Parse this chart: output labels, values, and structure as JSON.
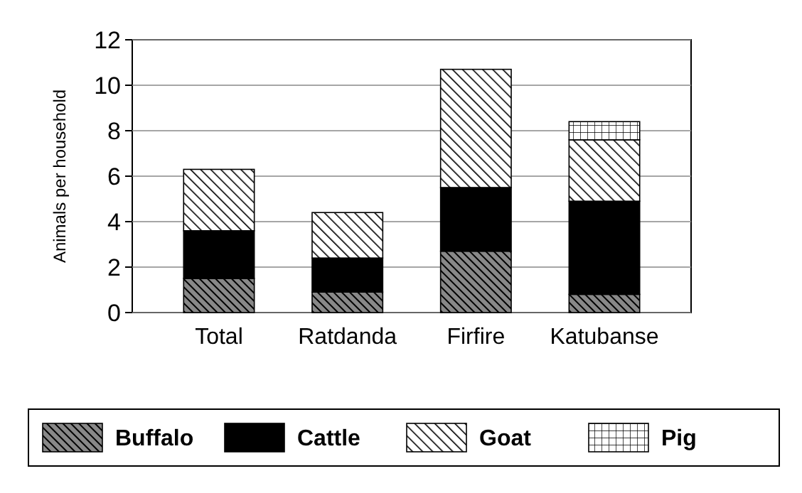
{
  "chart_data": {
    "type": "bar",
    "stacked": true,
    "ylabel": "Animals per household",
    "categories": [
      "Total",
      "Ratdanda",
      "Firfire",
      "Katubanse"
    ],
    "series": [
      {
        "name": "Buffalo",
        "color": "#000000",
        "values": [
          1.5,
          0.9,
          2.7,
          0.8
        ]
      },
      {
        "name": "Cattle",
        "color": "#000000",
        "values": [
          2.1,
          1.5,
          2.8,
          4.1
        ]
      },
      {
        "name": "Goat",
        "color": "#000000",
        "values": [
          2.7,
          2.0,
          5.2,
          2.7
        ]
      },
      {
        "name": "Pig",
        "color": "#000000",
        "values": [
          0,
          0,
          0,
          0.8
        ]
      }
    ],
    "ylim": [
      0,
      12
    ],
    "yticks": [
      0,
      2,
      4,
      6,
      8,
      10,
      12
    ],
    "grid": "y",
    "legend": "bottom"
  }
}
